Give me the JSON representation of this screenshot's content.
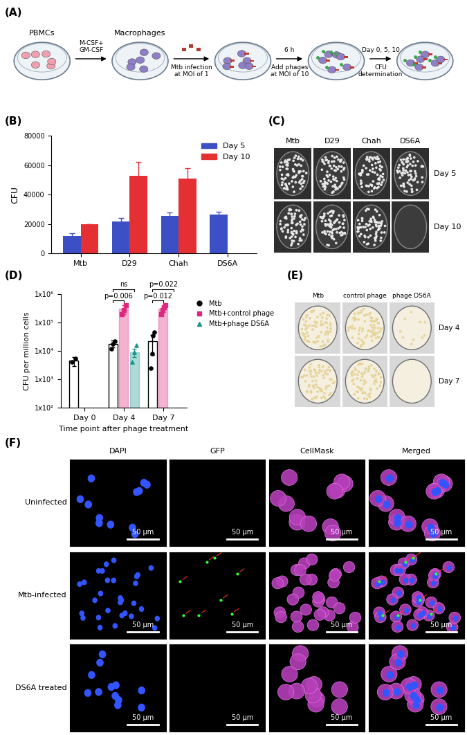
{
  "panel_A": {
    "panel_label": "(A)",
    "dishes": [
      {
        "label": "PBMCs"
      },
      {
        "label": "Macrophages"
      },
      {},
      {},
      {}
    ],
    "arrows": [
      {
        "above": "M-CSF+\nGM-CSF"
      },
      {
        "below": "Mtb infection\nat MOI of 1"
      },
      {
        "above": "6 h",
        "below": "Add phages\nat MOI of 10"
      },
      {
        "above": "Day 0, 5, 10",
        "below": "CFU\ndetermination"
      }
    ]
  },
  "chart_data": [
    {
      "panel_label": "(B)",
      "type": "bar",
      "y_label": "CFU",
      "categories": [
        "Mtb",
        "D29",
        "Chah",
        "DS6A"
      ],
      "series": [
        {
          "name": "Day 5",
          "color": "#3d4fc4",
          "values": [
            12000,
            22000,
            25500,
            26500
          ],
          "errors": [
            2000,
            2000,
            2500,
            2000
          ]
        },
        {
          "name": "Day 10",
          "color": "#e53033",
          "values": [
            20000,
            53000,
            51000,
            null
          ],
          "errors": [
            null,
            9500,
            7000,
            null
          ]
        }
      ],
      "ylim": [
        0,
        80000
      ],
      "yticks": [
        0,
        20000,
        40000,
        60000,
        80000
      ],
      "legend": "upper right"
    },
    {
      "panel_label": "(D)",
      "type": "bar",
      "x_label": "Time point after phage treatment",
      "y_label": "CFU per million cells",
      "log": "y",
      "categories": [
        "Day 0",
        "Day 4",
        "Day 7"
      ],
      "series": [
        {
          "name": "Mtb",
          "color": "#000000",
          "marker": "circle",
          "values": [
            4500,
            18000,
            22000
          ],
          "errors": [
            1500,
            5000,
            15000
          ],
          "points": [
            [
              4000,
              5500
            ],
            [
              12000,
              18000,
              22000
            ],
            [
              2500,
              8000,
              35000,
              45000
            ]
          ]
        },
        {
          "name": "Mtb+control phage",
          "color": "#e0267d",
          "marker": "square",
          "values": [
            null,
            300000,
            300000
          ],
          "errors": [
            null,
            100000,
            70000
          ],
          "points": [
            null,
            [
              200000,
              280000,
              400000
            ],
            [
              200000,
              280000,
              350000,
              400000
            ]
          ]
        },
        {
          "name": "Mtb+phage DS6A",
          "color": "#14968c",
          "marker": "triangle",
          "values": [
            null,
            9000,
            null
          ],
          "errors": [
            null,
            3000,
            null
          ],
          "points": [
            null,
            [
              4000,
              9000,
              16000
            ],
            null
          ]
        }
      ],
      "ylim": [
        100,
        1000000
      ],
      "yticks": [
        {
          "value": 100,
          "label": "1x10²"
        },
        {
          "value": 1000,
          "label": "1x10³"
        },
        {
          "value": 10000,
          "label": "1x10⁴"
        },
        {
          "value": 100000,
          "label": "1x10⁵"
        },
        {
          "value": 1000000,
          "label": "1x10⁶"
        }
      ],
      "legend": "upper left",
      "annotations": [
        {
          "text": "p=0.006",
          "category": "Day 4",
          "from": "Mtb",
          "to": "Mtb+control phage",
          "y": 600000
        },
        {
          "text": "ns",
          "category": "Day 4",
          "from": "Mtb",
          "to": "Mtb+phage DS6A",
          "y": 1500000
        },
        {
          "text": "p=0.012",
          "category": "Day 7",
          "from": "Mtb",
          "to": "Mtb+control phage",
          "y": 600000
        },
        {
          "text": "p=0.022",
          "category": "Day 7",
          "from": "Mtb",
          "to": "Mtb+phage DS6A",
          "y": 1500000
        }
      ]
    }
  ],
  "panel_C": {
    "panel_label": "(C)",
    "columns": [
      "Mtb",
      "D29",
      "Chah",
      "DS6A"
    ],
    "rows": [
      "Day 5",
      "Day 10"
    ]
  },
  "panel_E": {
    "panel_label": "(E)",
    "columns": [
      "Mtb",
      "control phage",
      "phage DS6A"
    ],
    "rows": [
      "Day 4",
      "Day 7"
    ]
  },
  "panel_F": {
    "panel_label": "(F)",
    "columns": [
      "DAPI",
      "GFP",
      "CellMask",
      "Merged"
    ],
    "rows": [
      "Uninfected",
      "Mtb-infected",
      "DS6A treated"
    ],
    "scale_bar": "50 µm"
  }
}
